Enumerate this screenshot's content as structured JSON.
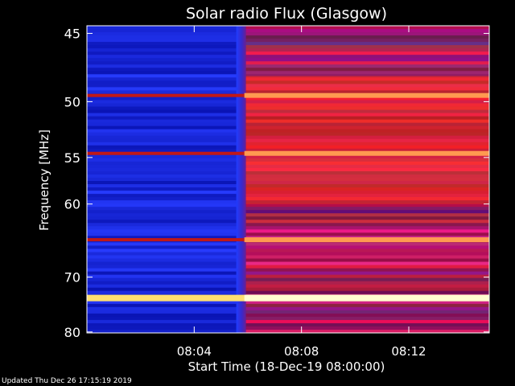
{
  "chart_data": {
    "type": "heatmap",
    "title": "Solar radio Flux (Glasgow)",
    "ylabel": "Frequency [MHz]",
    "xlabel": "Start Time (18-Dec-19 08:00:00)",
    "yticks": [
      "45",
      "50",
      "55",
      "60",
      "70",
      "80"
    ],
    "xticks": [
      "08:04",
      "08:08",
      "08:12"
    ],
    "ylim": [
      44.5,
      80.2
    ],
    "xlim_minutes": [
      0,
      15.0
    ],
    "y_scale": "reciprocal",
    "colormap": "blue-red-yellow",
    "events": [
      {
        "type": "broadband enhancement onset",
        "start_time": "08:05:45"
      }
    ],
    "bright_bands_mhz": [
      49.5,
      54.6,
      64.5,
      73.5
    ],
    "colors": {
      "background": "#000000",
      "axes": "#ffffff",
      "low": "#1a2aff",
      "mid": "#8a1f6a",
      "high": "#ff3a10",
      "peak": "#ffffc0"
    }
  },
  "footer": {
    "updated": "Updated Thu Dec 26 17:15:19 2019"
  }
}
